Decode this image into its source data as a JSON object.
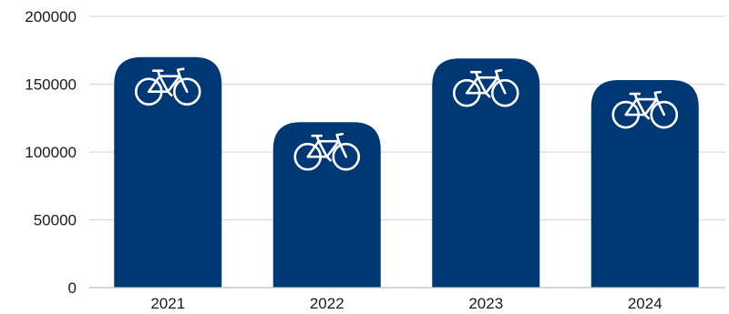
{
  "chart_data": {
    "type": "bar",
    "categories": [
      "2021",
      "2022",
      "2023",
      "2024"
    ],
    "values": [
      170000,
      122000,
      169000,
      153000
    ],
    "ylim": [
      0,
      200000
    ],
    "yticks": [
      0,
      50000,
      100000,
      150000,
      200000
    ],
    "ytick_labels": [
      "0",
      "50000",
      "100000",
      "150000",
      "200000"
    ],
    "grid": true,
    "bar_color": "#003873",
    "grid_color": "#d9d9d9",
    "bar_icon": "bicycle-icon"
  }
}
